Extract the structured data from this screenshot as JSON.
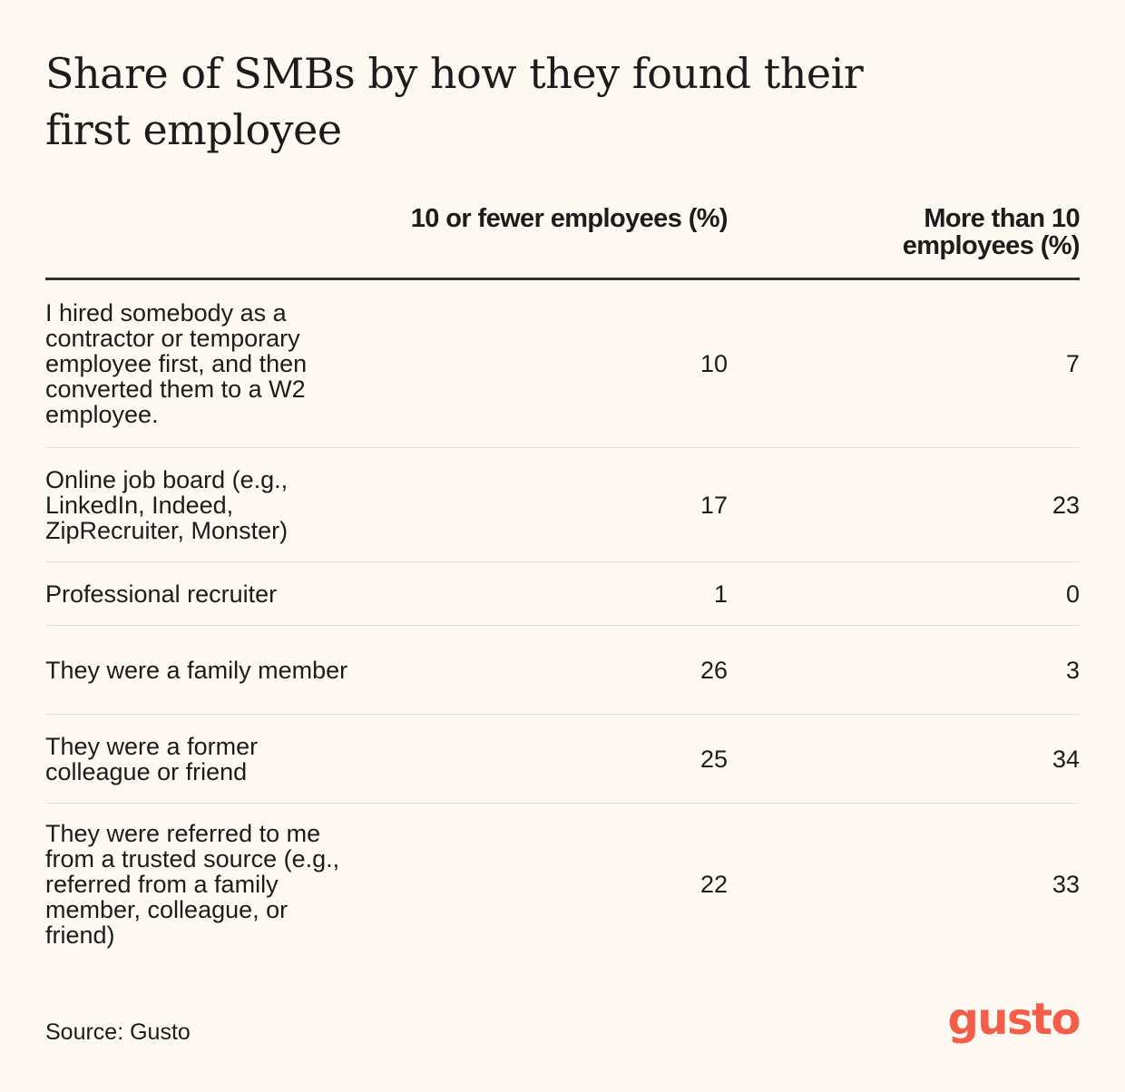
{
  "chart_data": {
    "type": "table",
    "title": "Share of SMBs by how they found their first employee",
    "columns": [
      "",
      "10 or fewer employees (%)",
      "More than 10 employees (%)"
    ],
    "rows": [
      {
        "label": "I hired somebody as a contractor or temporary employee first, and then converted them to a W2 employee.",
        "values": [
          "10",
          "7"
        ]
      },
      {
        "label": "Online job board (e.g., LinkedIn, Indeed, ZipRecruiter, Monster)",
        "values": [
          "17",
          "23"
        ]
      },
      {
        "label": "Professional recruiter",
        "values": [
          "1",
          "0"
        ]
      },
      {
        "label": "They were a family member",
        "values": [
          "26",
          "3"
        ]
      },
      {
        "label": "They were a former colleague or friend",
        "values": [
          "25",
          "34"
        ]
      },
      {
        "label": "They were referred to me from a trusted source (e.g., referred from a family member, colleague, or friend)",
        "values": [
          "22",
          "33"
        ]
      }
    ],
    "source": "Source: Gusto"
  },
  "brand": {
    "logo_text": "gusto",
    "accent_color": "#f45d48"
  }
}
